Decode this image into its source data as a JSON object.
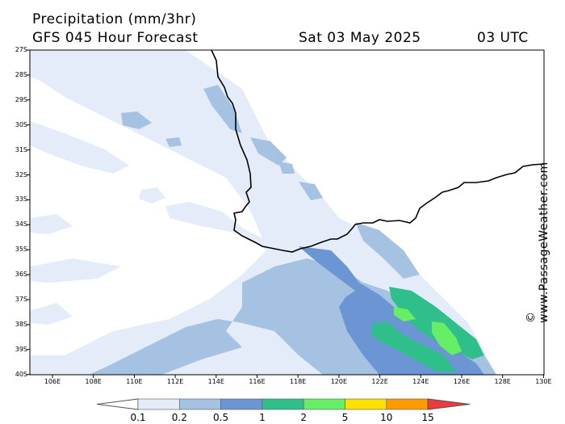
{
  "header": {
    "title": "Precipitation (mm/3hr)",
    "subtitle": "GFS 045 Hour Forecast",
    "date": "Sat 03 May 2025",
    "time": "03 UTC"
  },
  "credit": "© www.PassageWeather.com",
  "lat_labels": [
    "27S",
    "28S",
    "29S",
    "30S",
    "31S",
    "32S",
    "33S",
    "34S",
    "35S",
    "36S",
    "37S",
    "38S",
    "39S",
    "40S"
  ],
  "lon_labels": [
    "106E",
    "108E",
    "110E",
    "112E",
    "114E",
    "116E",
    "118E",
    "120E",
    "122E",
    "124E",
    "126E",
    "128E",
    "130E"
  ],
  "legend": {
    "labels": [
      "0.1",
      "0.2",
      "0.5",
      "1",
      "2",
      "5",
      "10",
      "15"
    ],
    "colors": [
      "#ffffff",
      "#e3ecf8",
      "#a6c2e3",
      "#6b96d3",
      "#2fbf8a",
      "#66ef66",
      "#ffe000",
      "#ff9a00",
      "#ee3a3a"
    ]
  }
}
